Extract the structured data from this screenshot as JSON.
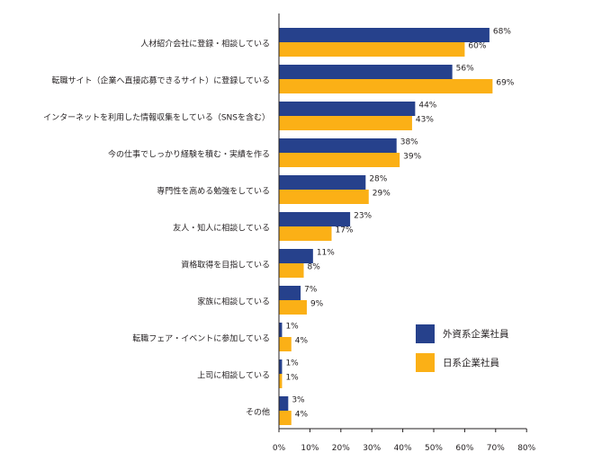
{
  "chart_data": {
    "type": "bar",
    "orientation": "horizontal",
    "categories": [
      "人材紹介会社に登録・相談している",
      "転職サイト（企業へ直接応募できるサイト）に登録している",
      "インターネットを利用した情報収集をしている（SNSを含む）",
      "今の仕事でしっかり経験を積む・実績を作る",
      "専門性を高める勉強をしている",
      "友人・知人に相談している",
      "資格取得を目指している",
      "家族に相談している",
      "転職フェア・イベントに参加している",
      "上司に相談している",
      "その他"
    ],
    "series": [
      {
        "name": "外資系企業社員",
        "color": "#26418c",
        "values": [
          68,
          56,
          44,
          38,
          28,
          23,
          11,
          7,
          1,
          1,
          3
        ],
        "labels": [
          "68%",
          "56%",
          "44%",
          "38%",
          "28%",
          "23%",
          "11%",
          "7%",
          "1%",
          "1%",
          "3%"
        ]
      },
      {
        "name": "日系企業社員",
        "color": "#fbb016",
        "values": [
          60,
          69,
          43,
          39,
          29,
          17,
          8,
          9,
          4,
          1,
          4
        ],
        "labels": [
          "60%",
          "69%",
          "43%",
          "39%",
          "29%",
          "17%",
          "8%",
          "9%",
          "4%",
          "1%",
          "4%"
        ]
      }
    ],
    "xlim": [
      0,
      80
    ],
    "xticks": [
      "0%",
      "10%",
      "20%",
      "30%",
      "40%",
      "50%",
      "60%",
      "70%",
      "80%"
    ],
    "xlabel": "",
    "ylabel": "",
    "grid": false,
    "legend_position": "bottom-right"
  }
}
